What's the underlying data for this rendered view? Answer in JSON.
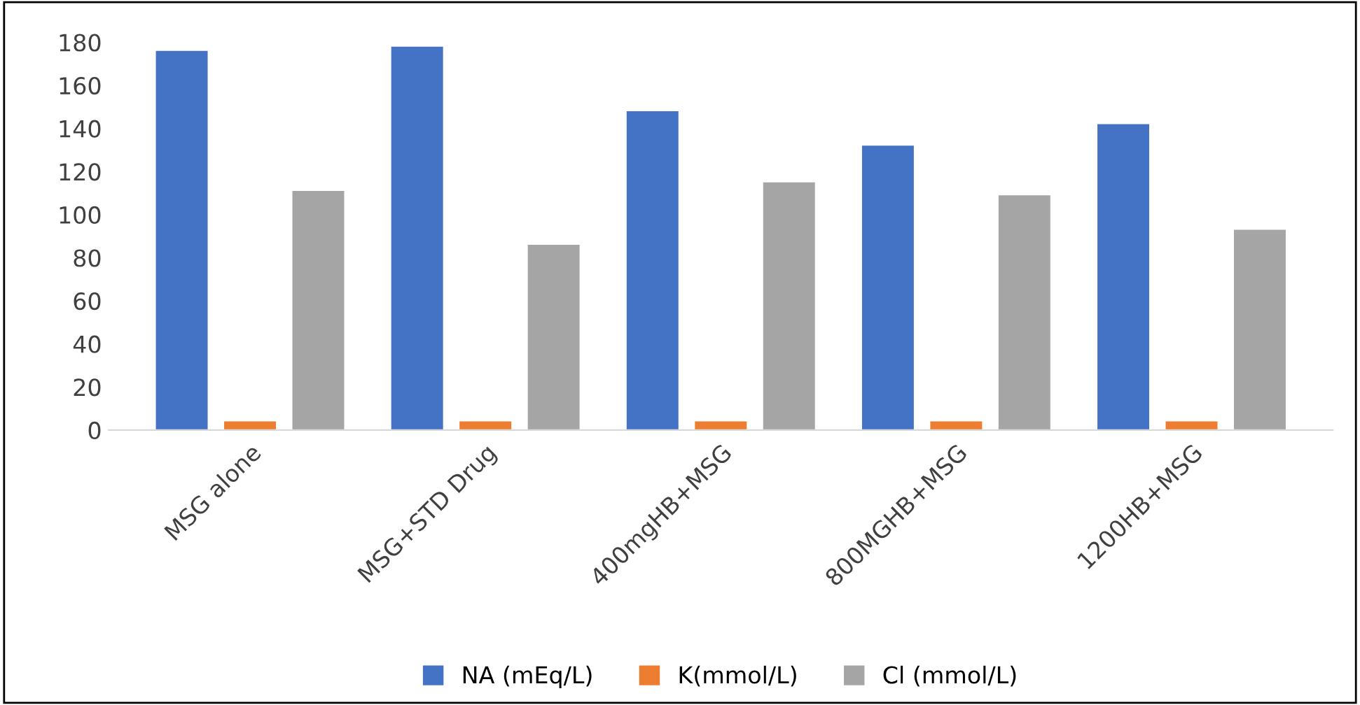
{
  "chart_data": {
    "type": "bar",
    "categories": [
      "MSG alone",
      "MSG+STD Drug",
      "400mgHB+MSG",
      "800MGHB+MSG",
      "1200HB+MSG"
    ],
    "series": [
      {
        "name": "NA (mEq/L)",
        "color": "#4472c4",
        "values": [
          176,
          178,
          148,
          132,
          142
        ]
      },
      {
        "name": "K(mmol/L)",
        "color": "#ed7d31",
        "values": [
          4,
          4,
          4,
          4,
          4
        ]
      },
      {
        "name": "Cl (mmol/L)",
        "color": "#a5a5a5",
        "values": [
          111,
          86,
          115,
          109,
          93
        ]
      }
    ],
    "ylim": [
      0,
      180
    ],
    "yticks": [
      0,
      20,
      40,
      60,
      80,
      100,
      120,
      140,
      160,
      180
    ],
    "grid": false,
    "legend": "bottom"
  }
}
